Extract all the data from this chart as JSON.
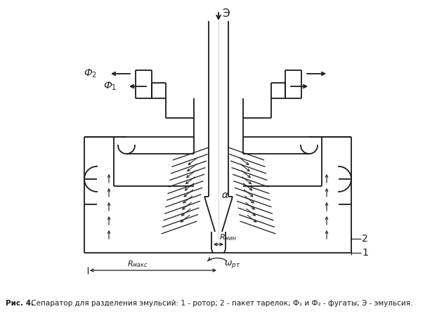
{
  "caption_bold": "Рис. 4.",
  "caption_normal": " Сепаратор для разделения эмульсий: 1 - ротор; 2 - пакет тарелок; Ф₁ и Ф₂ - фугаты; Э - эмульсия.",
  "bg_color": "#ffffff",
  "line_color": "#1a1a1a",
  "fig_width": 6.22,
  "fig_height": 4.5
}
